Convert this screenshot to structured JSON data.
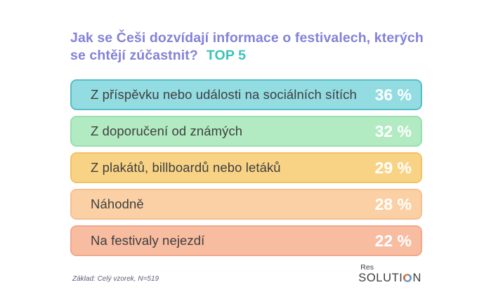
{
  "header": {
    "title_line1": "Jak se Češi dozvídají informace o festivalech, kterých",
    "title_line2": "se chtějí zúčastnit?",
    "title_highlight": "TOP 5",
    "title_color": "#8481d9",
    "highlight_color": "#3cc3b7"
  },
  "chart_data": {
    "type": "bar",
    "orientation": "horizontal",
    "title": "Jak se Češi dozvídají informace o festivalech, kterých se chtějí zúčastnit? TOP 5",
    "categories": [
      "Z příspěvku nebo události na sociálních sítích",
      "Z doporučení od známých",
      "Z plakátů, billboardů nebo letáků",
      "Náhodně",
      "Na festivaly nejezdí"
    ],
    "values": [
      36,
      32,
      29,
      28,
      22
    ],
    "unit": "%",
    "legend": false,
    "note": "Základ: Celý vzorek, N=519",
    "rows": [
      {
        "label": "Z příspěvku nebo události na sociálních sítích",
        "value": 36,
        "value_label": "36 %",
        "fill": "#92dce2",
        "border": "#56bec9"
      },
      {
        "label": "Z doporučení od známých",
        "value": 32,
        "value_label": "32 %",
        "fill": "#b2eac2",
        "border": "#98dfae"
      },
      {
        "label": "Z plakátů, billboardů nebo letáků",
        "value": 29,
        "value_label": "29 %",
        "fill": "#f9d385",
        "border": "#f2c264"
      },
      {
        "label": "Náhodně",
        "value": 28,
        "value_label": "28 %",
        "fill": "#fbd0a5",
        "border": "#f6c08e"
      },
      {
        "label": "Na festivaly nejezdí",
        "value": 22,
        "value_label": "22 %",
        "fill": "#f8bca1",
        "border": "#f1a98c"
      }
    ]
  },
  "footer": {
    "note": "Základ: Celý vzorek, N=519",
    "logo": {
      "top": "Res",
      "part1": "SOLUTI",
      "part2": "N"
    }
  }
}
